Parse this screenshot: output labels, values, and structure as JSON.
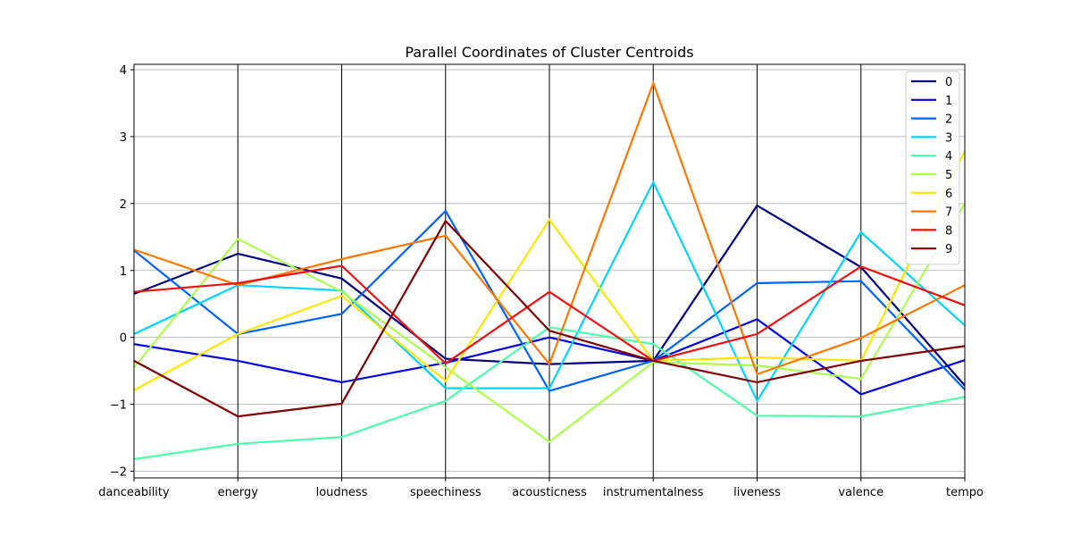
{
  "chart_data": {
    "type": "line",
    "title": "Parallel Coordinates of Cluster Centroids",
    "categories": [
      "danceability",
      "energy",
      "loudness",
      "speechiness",
      "acousticness",
      "instrumentalness",
      "liveness",
      "valence",
      "tempo"
    ],
    "ylim": [
      -2.1,
      4.08
    ],
    "yticks": [
      4,
      3,
      2,
      1,
      0,
      -1,
      -2
    ],
    "ytick_labels": [
      "4",
      "3",
      "2",
      "1",
      "0",
      "−1",
      "−2"
    ],
    "grid": true,
    "legend_placement": "top-right",
    "series": [
      {
        "name": "0",
        "color": "#00007f",
        "values": [
          0.65,
          1.25,
          0.88,
          -0.32,
          -0.4,
          -0.35,
          1.97,
          1.05,
          -0.72
        ]
      },
      {
        "name": "1",
        "color": "#0000e6",
        "values": [
          -0.1,
          -0.35,
          -0.67,
          -0.38,
          0.0,
          -0.35,
          0.27,
          -0.85,
          -0.34
        ]
      },
      {
        "name": "2",
        "color": "#0062ff",
        "values": [
          1.3,
          0.05,
          0.35,
          1.89,
          -0.8,
          -0.35,
          0.81,
          0.84,
          -0.78
        ]
      },
      {
        "name": "3",
        "color": "#00d4ff",
        "values": [
          0.05,
          0.78,
          0.7,
          -0.76,
          -0.76,
          2.32,
          -0.95,
          1.57,
          0.18
        ]
      },
      {
        "name": "4",
        "color": "#4dffaa",
        "values": [
          -1.82,
          -1.59,
          -1.49,
          -0.95,
          0.15,
          -0.1,
          -1.17,
          -1.18,
          -0.89
        ]
      },
      {
        "name": "5",
        "color": "#aaff4d",
        "values": [
          -0.45,
          1.47,
          0.68,
          -0.45,
          -1.56,
          -0.37,
          -0.42,
          -0.62,
          2.0
        ]
      },
      {
        "name": "6",
        "color": "#ffe600",
        "values": [
          -0.79,
          0.05,
          0.62,
          -0.65,
          1.76,
          -0.35,
          -0.3,
          -0.35,
          2.78
        ]
      },
      {
        "name": "7",
        "color": "#ff7700",
        "values": [
          1.31,
          0.78,
          1.17,
          1.52,
          -0.4,
          3.8,
          -0.55,
          -0.01,
          0.78
        ]
      },
      {
        "name": "8",
        "color": "#f00f0f",
        "values": [
          0.68,
          0.81,
          1.07,
          -0.39,
          0.68,
          -0.35,
          0.05,
          1.06,
          0.48
        ]
      },
      {
        "name": "9",
        "color": "#7f0000",
        "values": [
          -0.35,
          -1.18,
          -0.99,
          1.74,
          0.1,
          -0.35,
          -0.67,
          -0.35,
          -0.13
        ]
      }
    ]
  }
}
